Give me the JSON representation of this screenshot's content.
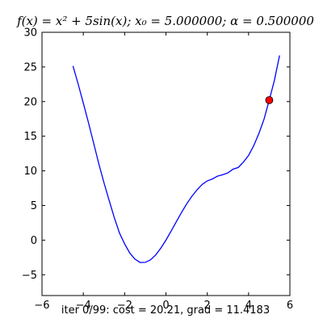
{
  "chart_data": {
    "type": "line",
    "title": "f(x) = x² + 5sin(x); x₀ = 5.000000; α = 0.500000",
    "xlabel": "iter 0/99: cost = 20.21, grad = 11.4183",
    "ylabel": "",
    "xlim": [
      -6,
      6
    ],
    "ylim": [
      -8,
      30
    ],
    "x_ticks": [
      -6,
      -4,
      -2,
      0,
      2,
      4,
      6
    ],
    "x_tick_labels": [
      "−6",
      "−4",
      "−2",
      "0",
      "2",
      "4",
      "6"
    ],
    "y_ticks": [
      -5,
      0,
      5,
      10,
      15,
      20,
      25,
      30
    ],
    "y_tick_labels": [
      "−5",
      "0",
      "5",
      "10",
      "15",
      "20",
      "25",
      "30"
    ],
    "grid": false,
    "series": [
      {
        "color": "#0000ff",
        "x": [
          -4.5,
          -4.25,
          -4.0,
          -3.75,
          -3.5,
          -3.25,
          -3.0,
          -2.75,
          -2.5,
          -2.25,
          -2.0,
          -1.75,
          -1.5,
          -1.25,
          -1.0,
          -0.75,
          -0.5,
          -0.25,
          0.0,
          0.25,
          0.5,
          0.75,
          1.0,
          1.25,
          1.5,
          1.75,
          2.0,
          2.25,
          2.5,
          2.75,
          3.0,
          3.25,
          3.5,
          3.75,
          4.0,
          4.25,
          4.5,
          4.75,
          5.0,
          5.25,
          5.5
        ],
        "y": [
          25.14,
          22.54,
          19.78,
          16.96,
          14.0,
          11.03,
          8.29,
          5.73,
          3.26,
          1.04,
          -0.55,
          -1.86,
          -2.74,
          -3.23,
          -3.21,
          -2.85,
          -2.15,
          -1.17,
          0.0,
          1.3,
          2.65,
          3.97,
          5.21,
          6.31,
          7.24,
          8.03,
          8.55,
          8.83,
          9.24,
          9.44,
          9.71,
          10.24,
          10.49,
          11.27,
          12.22,
          13.64,
          15.4,
          17.48,
          20.21,
          23.06,
          26.67
        ]
      }
    ],
    "markers": [
      {
        "x": 5.0,
        "y": 20.21,
        "color": "#ff0000"
      }
    ]
  }
}
